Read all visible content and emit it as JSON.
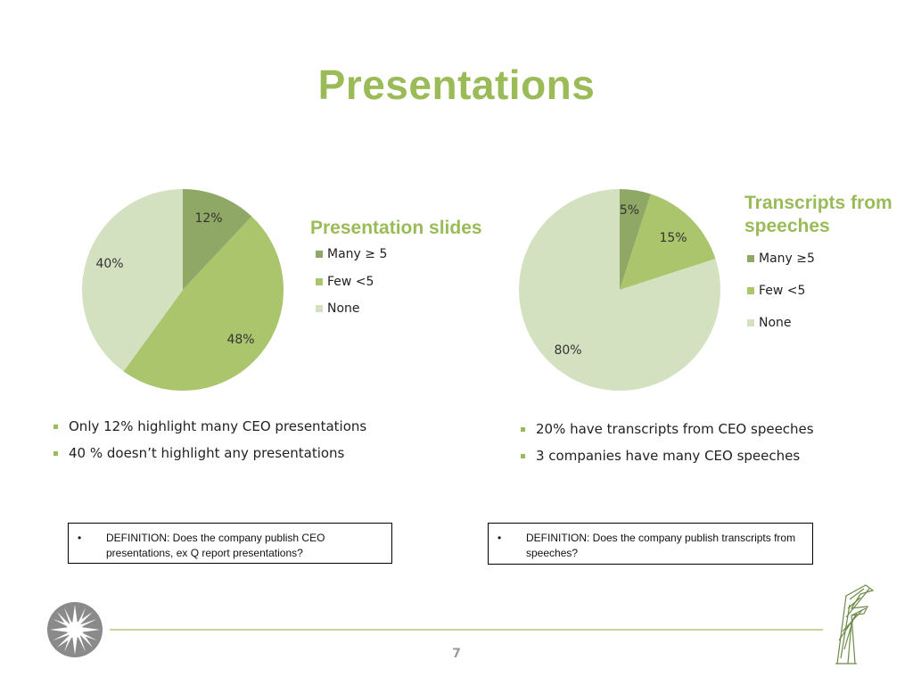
{
  "slide": {
    "title": "Presentations",
    "page_number": "7"
  },
  "colors": {
    "accent": "#9bbb59",
    "many": "#8fa865",
    "few": "#abc56d",
    "none": "#d4e1c0"
  },
  "chart_data": [
    {
      "type": "pie",
      "title": "Presentation slides",
      "categories": [
        "Many ≥ 5",
        "Few <5",
        "None"
      ],
      "values": [
        12,
        48,
        40
      ],
      "labels": [
        "12%",
        "48%",
        "40%"
      ],
      "legend_placement": "right"
    },
    {
      "type": "pie",
      "title": "Transcripts from speeches",
      "categories": [
        "Many ≥5",
        "Few <5",
        "None"
      ],
      "values": [
        5,
        15,
        80
      ],
      "labels": [
        "5%",
        "15%",
        "80%"
      ],
      "legend_placement": "right"
    }
  ],
  "left_bullets": [
    "Only 12% highlight many CEO presentations",
    "40 % doesn’t highlight any presentations"
  ],
  "right_bullets": [
    "20% have transcripts from CEO speeches",
    "3 companies have many CEO speeches"
  ],
  "definitions": {
    "left": {
      "bullet": "•",
      "text": "DEFINITION: Does the company publish CEO presentations, ex Q report presentations?"
    },
    "right": {
      "bullet": "•",
      "text": "DEFINITION: Does the company publish transcripts from speeches?"
    }
  },
  "logos": {
    "left": "sunburst-logo-icon",
    "right": "tree-logo-icon"
  }
}
